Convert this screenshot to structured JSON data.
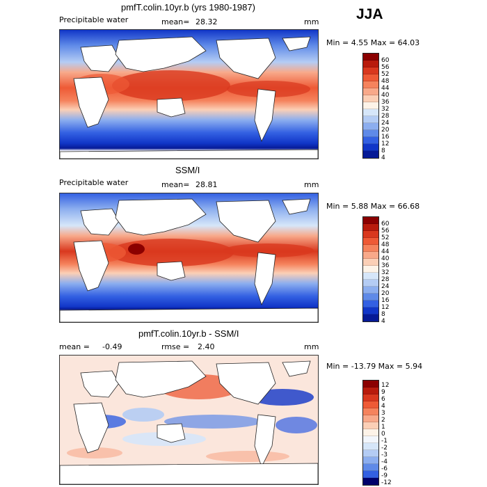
{
  "season": "JJA",
  "panels": [
    {
      "id": "model",
      "title": "pmfT.colin.10yr.b (yrs 1980-1987)",
      "left_label": "Precipitable water",
      "stat_label": "mean=",
      "stat_value": "28.32",
      "stat2_label": "",
      "stat2_value": "",
      "units": "mm",
      "minmax": "Min =    4.55 Max =  64.03",
      "colorbar_labels": [
        "60",
        "56",
        "52",
        "48",
        "44",
        "40",
        "36",
        "32",
        "28",
        "24",
        "20",
        "16",
        "12",
        "8",
        "4"
      ]
    },
    {
      "id": "obs",
      "title": "SSM/I",
      "left_label": "Precipitable water",
      "stat_label": "mean=",
      "stat_value": "28.81",
      "stat2_label": "",
      "stat2_value": "",
      "units": "mm",
      "minmax": "Min =    5.88 Max =  66.68",
      "colorbar_labels": [
        "60",
        "56",
        "52",
        "48",
        "44",
        "40",
        "36",
        "32",
        "28",
        "24",
        "20",
        "16",
        "12",
        "8",
        "4"
      ]
    },
    {
      "id": "diff",
      "title": "pmfT.colin.10yr.b - SSM/I",
      "left_label": "mean =",
      "stat_label": "",
      "stat_value": "-0.49",
      "stat2_label": "rmse =",
      "stat2_value": "2.40",
      "units": "mm",
      "minmax": "Min = -13.79 Max =    5.94",
      "colorbar_labels": [
        "12",
        "9",
        "6",
        "4",
        "3",
        "2",
        "1",
        "0",
        "-1",
        "-2",
        "-3",
        "-4",
        "-6",
        "-9",
        "-12"
      ]
    }
  ],
  "colors": {
    "field_scale": [
      "#8b0000",
      "#b81b0c",
      "#d9381e",
      "#ee5a36",
      "#f5835d",
      "#f8a98a",
      "#fbcfb6",
      "#fdf3e8",
      "#d6e6f9",
      "#b4ccf4",
      "#8caeef",
      "#5f8ae8",
      "#3360e2",
      "#1136c8",
      "#061a96",
      "#00006a"
    ],
    "diff_scale": [
      "#8b0000",
      "#b81b0c",
      "#d9381e",
      "#ee5a36",
      "#f5835d",
      "#f8a98a",
      "#fbcfb6",
      "#fdf3e8",
      "#f2f6fc",
      "#d6e6f9",
      "#b4ccf4",
      "#8caeef",
      "#5f8ae8",
      "#3360e2",
      "#1136c8",
      "#00006a"
    ]
  }
}
